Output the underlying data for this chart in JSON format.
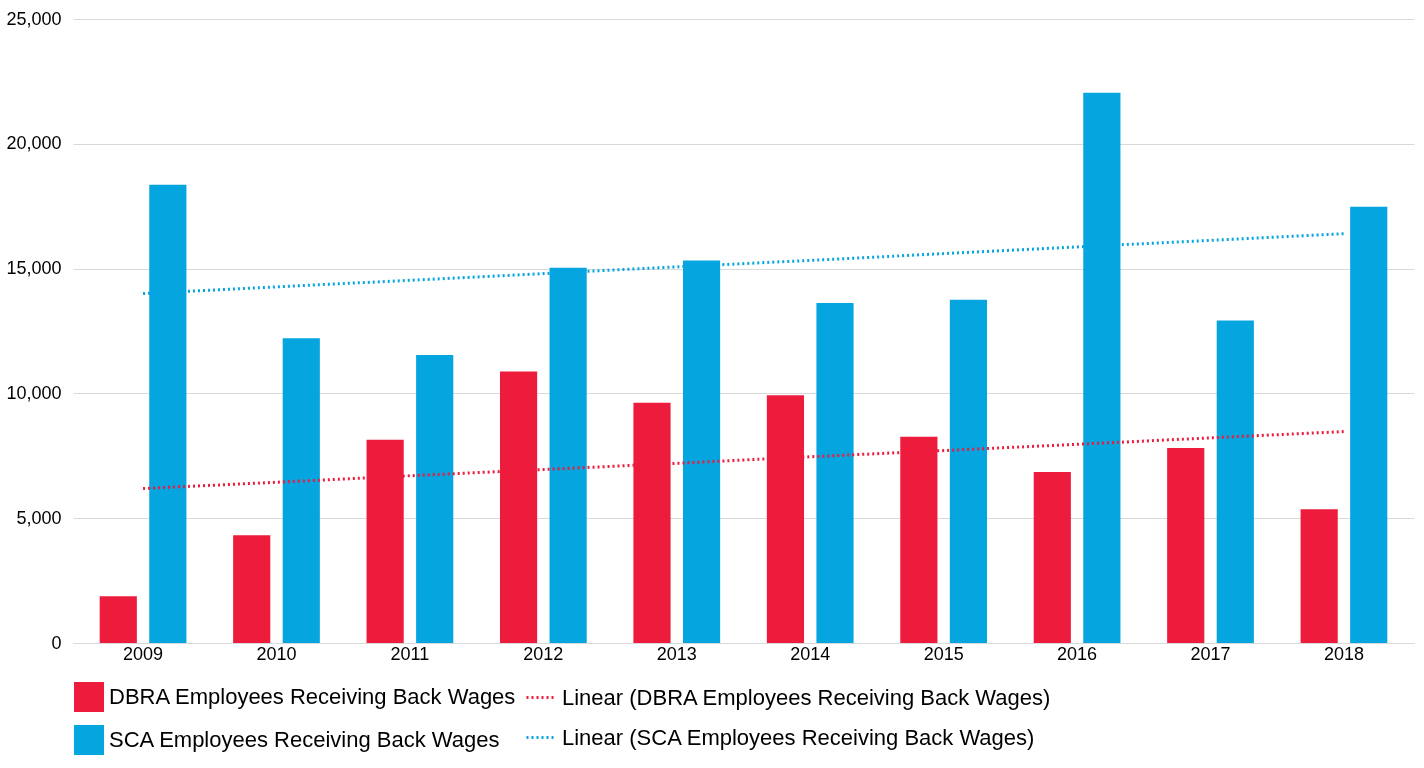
{
  "chart_data": {
    "type": "bar",
    "categories": [
      "2009",
      "2010",
      "2011",
      "2012",
      "2013",
      "2014",
      "2015",
      "2016",
      "2017",
      "2018"
    ],
    "series": [
      {
        "name": "DBRA Employees Receiving Back Wages",
        "color": "#ed1c3c",
        "values": [
          1870,
          4320,
          8140,
          10880,
          9630,
          9930,
          8260,
          6850,
          7810,
          5360
        ]
      },
      {
        "name": "SCA Employees Receiving Back Wages",
        "color": "#05a5e0",
        "values": [
          18360,
          12210,
          11540,
          15030,
          15320,
          13620,
          13750,
          22050,
          12920,
          17480
        ]
      },
      {
        "name": "Linear (DBRA Employees Receiving Back Wages)",
        "type": "line",
        "line_style": "dotted",
        "color": "#ed1c3c",
        "values": [
          6190,
          6440,
          6700,
          6950,
          7200,
          7460,
          7710,
          7960,
          8220,
          8470
        ]
      },
      {
        "name": "Linear (SCA Employees Receiving Back Wages)",
        "type": "line",
        "line_style": "dotted",
        "color": "#05a5e0",
        "values": [
          14000,
          14270,
          14530,
          14800,
          15070,
          15330,
          15600,
          15870,
          16130,
          16400
        ]
      }
    ],
    "ylim": [
      0,
      25000
    ],
    "yticks": [
      0,
      {
        "value": 5000,
        "label": "5,000"
      },
      {
        "value": 10000,
        "label": "10,000"
      },
      {
        "value": 15000,
        "label": "15,000"
      },
      {
        "value": 20000,
        "label": "20,000"
      },
      {
        "value": 25000,
        "label": "25,000"
      }
    ],
    "grid": "y",
    "legend": "bottom",
    "marker": "none"
  }
}
